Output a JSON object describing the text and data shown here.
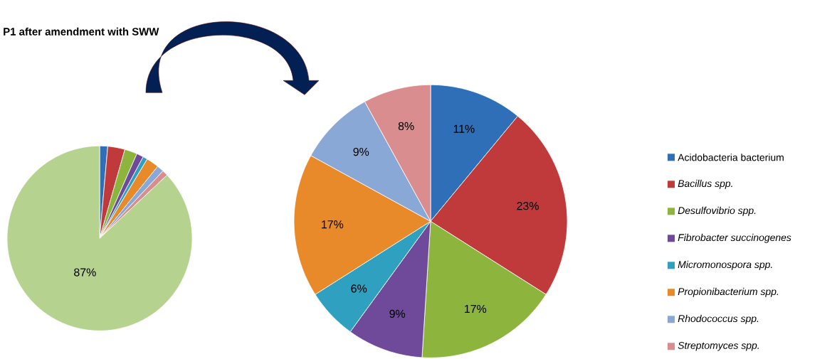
{
  "chart_data": [
    {
      "type": "pie",
      "title": "P1 after amendment with SWW",
      "categories": [
        null,
        null,
        null,
        null,
        null,
        null,
        null,
        null,
        null
      ],
      "values": [
        1.4,
        3.0,
        2.2,
        1.2,
        0.8,
        2.2,
        1.2,
        1.0,
        87
      ],
      "colors": [
        "#2e6fb7",
        "#c0393b",
        "#8db53e",
        "#6f4a9a",
        "#2fa0bf",
        "#e88a2a",
        "#8aa8d6",
        "#d98d8f",
        "#b5d38f"
      ],
      "value_labels": [
        null,
        null,
        null,
        null,
        null,
        null,
        null,
        null,
        "87%"
      ]
    },
    {
      "type": "pie",
      "categories": [
        "Acidobacteria bacterium",
        "*Bacillus spp.*",
        "*Desulfovibrio spp.*",
        "*Fibrobacter succinogenes*",
        "*Micromonospora spp.*",
        "*Propionibacterium spp.*",
        "*Rhodococcus spp.*",
        "*Streptomyces spp.*"
      ],
      "values": [
        11,
        23,
        17,
        9,
        6,
        17,
        9,
        8
      ],
      "colors": [
        "#2e6fb7",
        "#c0393b",
        "#8db53e",
        "#6f4a9a",
        "#2fa0bf",
        "#e88a2a",
        "#8aa8d6",
        "#d98d8f"
      ],
      "value_labels": [
        "11%",
        "23%",
        "17%",
        "9%",
        "6%",
        "17%",
        "9%",
        "8%"
      ],
      "legend": "right"
    }
  ]
}
